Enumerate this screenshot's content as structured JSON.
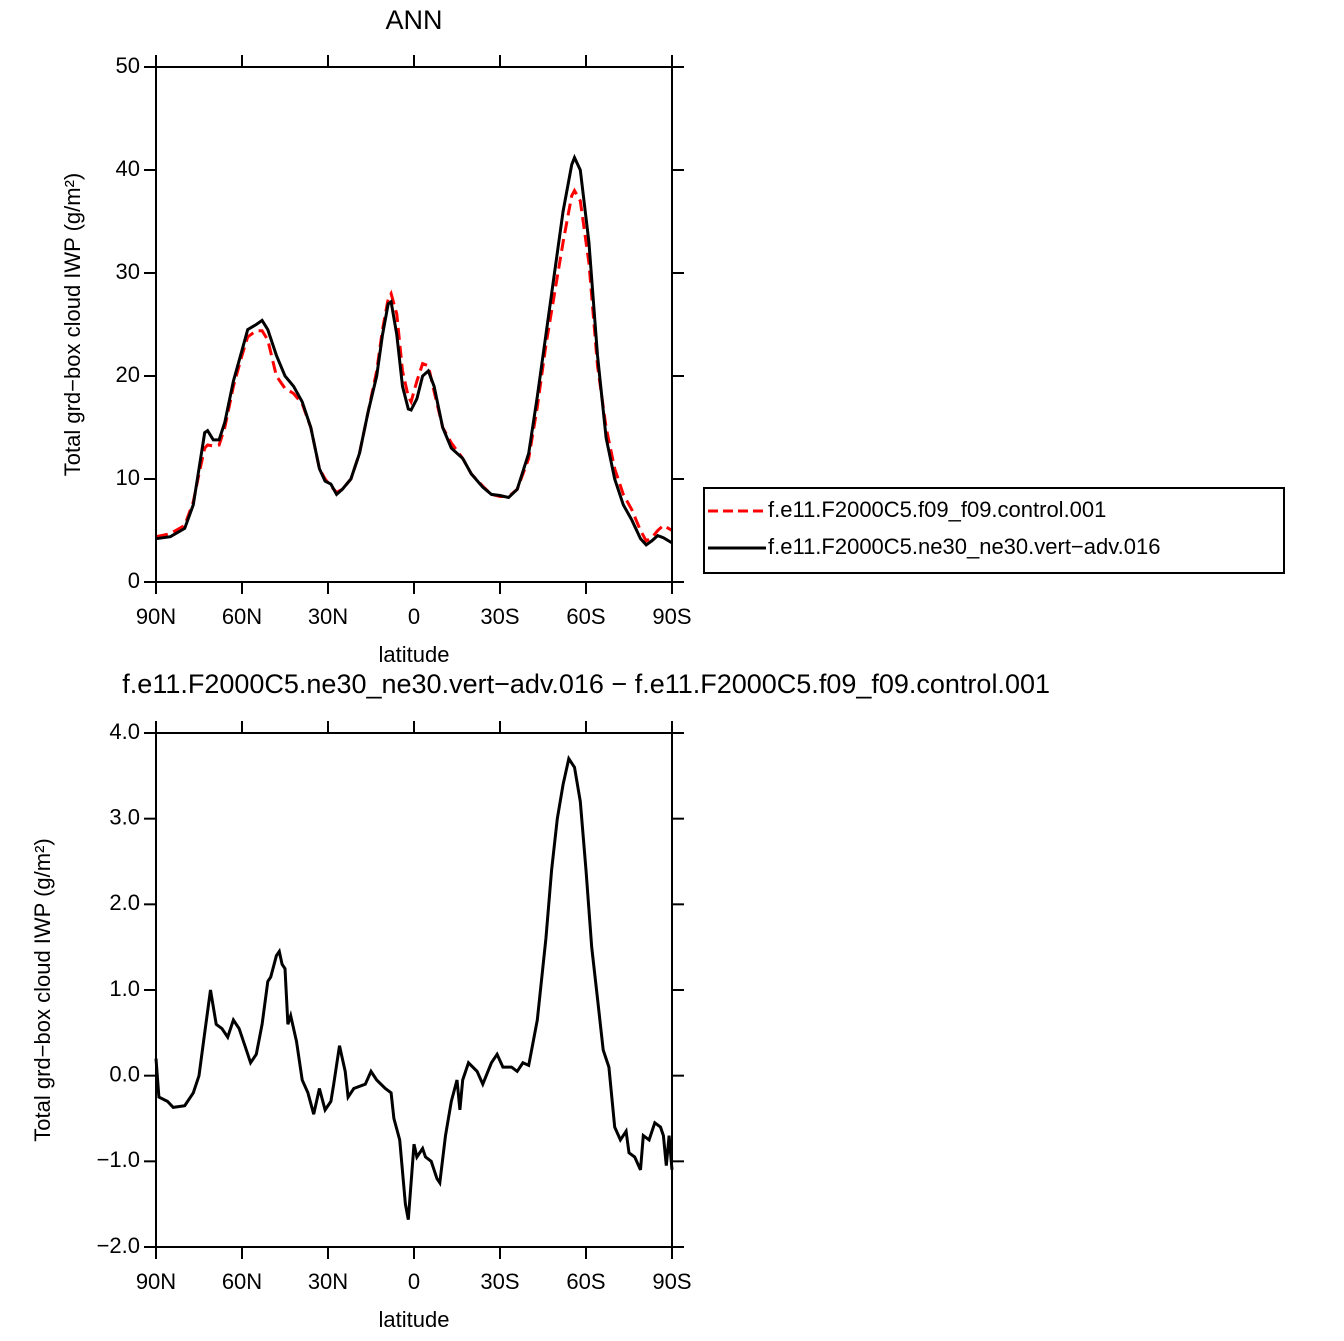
{
  "chart_data": [
    {
      "type": "line",
      "title": "ANN",
      "xlabel": "latitude",
      "ylabel": "Total grd−box cloud IWP (g/m²)",
      "xlim": [
        90,
        -90
      ],
      "xticks": [
        {
          "value": 90,
          "label": "90N"
        },
        {
          "value": 60,
          "label": "60N"
        },
        {
          "value": 30,
          "label": "30N"
        },
        0,
        {
          "value": -30,
          "label": "30S"
        },
        {
          "value": -60,
          "label": "60S"
        },
        {
          "value": -90,
          "label": "90S"
        }
      ],
      "ylim": [
        0,
        50
      ],
      "yticks": [
        0,
        10,
        20,
        30,
        40,
        50
      ],
      "legend": "outside-right",
      "x": [
        90,
        85,
        80,
        77,
        75,
        73,
        72,
        70,
        68,
        66,
        63,
        60,
        58,
        55,
        53,
        51,
        48,
        45,
        42,
        39,
        36,
        33,
        31,
        29,
        27,
        25,
        22,
        19,
        16,
        13,
        11,
        9,
        8,
        6,
        4,
        2,
        1,
        -1,
        -3,
        -5,
        -7,
        -10,
        -13,
        -17,
        -20,
        -24,
        -27,
        -30,
        -33,
        -36,
        -40,
        -43,
        -46,
        -49,
        -52,
        -55,
        -56,
        -58,
        -61,
        -64,
        -67,
        -70,
        -73,
        -76,
        -79,
        -81,
        -83,
        -85,
        -87,
        -90
      ],
      "series": [
        {
          "name": "f.e11.F2000C5.f09_f09.control.001",
          "color": "#ff0000",
          "dashed": true,
          "values": [
            4.4,
            4.7,
            5.5,
            7.8,
            10.5,
            13,
            13.3,
            13.2,
            13.3,
            15,
            19,
            22,
            23.8,
            24.4,
            24.4,
            23.5,
            20,
            18.8,
            18.3,
            17.3,
            15,
            11,
            10,
            9.3,
            8.7,
            9,
            10,
            12.5,
            16.5,
            20.5,
            24.5,
            27.5,
            28,
            26,
            20.5,
            18,
            17.5,
            19.5,
            21.2,
            21,
            18.5,
            15,
            13.5,
            12,
            10.5,
            9.3,
            8.5,
            8.3,
            8.3,
            9,
            12,
            17,
            23,
            28,
            33,
            37.5,
            38,
            37,
            31,
            21,
            15,
            11,
            8.5,
            7,
            5,
            4,
            4.3,
            5,
            5.5,
            5
          ]
        },
        {
          "name": "f.e11.F2000C5.ne30_ne30.vert−adv.016",
          "color": "#000000",
          "dashed": false,
          "values": [
            4.2,
            4.4,
            5.2,
            7.5,
            11,
            14.5,
            14.7,
            13.8,
            13.8,
            15.5,
            19.5,
            22.5,
            24.5,
            25,
            25.4,
            24.5,
            22,
            20,
            19,
            17.5,
            15,
            11,
            9.8,
            9.5,
            8.5,
            9,
            10,
            12.5,
            16.5,
            20,
            24,
            27,
            27.2,
            24,
            19,
            16.8,
            16.7,
            17.8,
            20,
            20.5,
            19,
            15,
            13,
            12,
            10.5,
            9.2,
            8.5,
            8.4,
            8.2,
            9,
            12.5,
            18,
            24,
            30,
            36,
            40.5,
            41.2,
            40,
            33,
            22,
            14,
            10,
            7.5,
            6,
            4.2,
            3.6,
            4,
            4.5,
            4.3,
            3.8
          ]
        }
      ]
    },
    {
      "type": "line",
      "title": "f.e11.F2000C5.ne30_ne30.vert−adv.016 − f.e11.F2000C5.f09_f09.control.001",
      "xlabel": "latitude",
      "ylabel": "Total grd−box cloud IWP (g/m²)",
      "xlim": [
        90,
        -90
      ],
      "xticks": [
        {
          "value": 90,
          "label": "90N"
        },
        {
          "value": 60,
          "label": "60N"
        },
        {
          "value": 30,
          "label": "30N"
        },
        0,
        {
          "value": -30,
          "label": "30S"
        },
        {
          "value": -60,
          "label": "60S"
        },
        {
          "value": -90,
          "label": "90S"
        }
      ],
      "ylim": [
        -2,
        4
      ],
      "yticks": [
        {
          "value": -2,
          "label": "−2.0"
        },
        {
          "value": -1,
          "label": "−1.0"
        },
        {
          "value": 0,
          "label": "0.0"
        },
        {
          "value": 1,
          "label": "1.0"
        },
        {
          "value": 2,
          "label": "2.0"
        },
        {
          "value": 3,
          "label": "3.0"
        },
        {
          "value": 4,
          "label": "4.0"
        }
      ],
      "x": [
        90,
        89,
        86,
        84,
        80,
        77,
        75,
        73,
        71,
        69,
        67,
        65,
        63,
        61,
        59,
        57,
        55,
        53,
        51,
        50,
        48,
        47,
        46,
        45,
        44,
        43,
        41,
        39,
        37,
        35,
        33,
        31,
        29,
        28,
        26,
        24,
        23,
        21,
        17,
        15,
        13,
        10,
        8,
        7,
        5,
        3,
        2,
        0,
        -1,
        -3,
        -4,
        -6,
        -8,
        -9,
        -11,
        -13,
        -15,
        -16,
        -17,
        -19,
        -22,
        -24,
        -27,
        -29,
        -31,
        -34,
        -36,
        -38,
        -40,
        -43,
        -46,
        -48,
        -50,
        -52,
        -54,
        -56,
        -58,
        -60,
        -62,
        -64,
        -66,
        -68,
        -70,
        -72,
        -74,
        -75,
        -77,
        -79,
        -80,
        -82,
        -84,
        -86,
        -87,
        -88,
        -89,
        -90
      ],
      "series": [
        {
          "color": "#000000",
          "dashed": false,
          "values": [
            0.2,
            -0.25,
            -0.3,
            -0.37,
            -0.35,
            -0.2,
            0,
            0.5,
            1,
            0.6,
            0.55,
            0.45,
            0.65,
            0.55,
            0.35,
            0.15,
            0.25,
            0.6,
            1.1,
            1.15,
            1.4,
            1.45,
            1.3,
            1.25,
            0.6,
            0.7,
            0.4,
            -0.05,
            -0.2,
            -0.45,
            -0.15,
            -0.4,
            -0.3,
            -0.1,
            0.35,
            0.05,
            -0.25,
            -0.15,
            -0.1,
            0.05,
            -0.05,
            -0.15,
            -0.2,
            -0.5,
            -0.75,
            -1.5,
            -1.68,
            -0.8,
            -0.95,
            -0.85,
            -0.95,
            -1,
            -1.2,
            -1.25,
            -0.7,
            -0.3,
            -0.05,
            -0.4,
            -0.05,
            0.15,
            0.05,
            -0.1,
            0.15,
            0.25,
            0.1,
            0.1,
            0.05,
            0.15,
            0.12,
            0.65,
            1.6,
            2.4,
            3,
            3.4,
            3.7,
            3.6,
            3.2,
            2.4,
            1.5,
            0.9,
            0.3,
            0.1,
            -0.6,
            -0.75,
            -0.65,
            -0.9,
            -0.95,
            -1.1,
            -0.7,
            -0.75,
            -0.55,
            -0.6,
            -0.7,
            -1.05,
            -0.7,
            -1.1
          ]
        }
      ]
    }
  ]
}
